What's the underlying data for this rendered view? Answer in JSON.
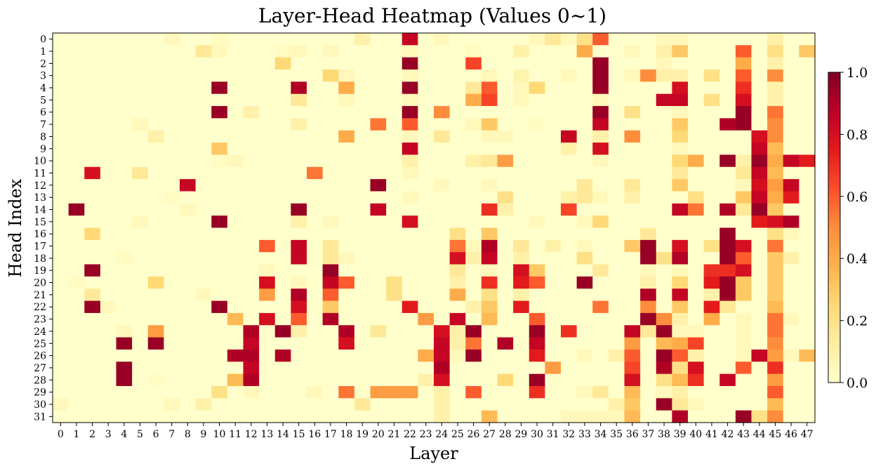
{
  "chart_data": {
    "type": "heatmap",
    "title": "Layer-Head Heatmap (Values 0~1)",
    "xlabel": "Layer",
    "ylabel": "Head Index",
    "x_categories": [
      "0",
      "1",
      "2",
      "3",
      "4",
      "5",
      "6",
      "7",
      "8",
      "9",
      "10",
      "11",
      "12",
      "13",
      "14",
      "15",
      "16",
      "17",
      "18",
      "19",
      "20",
      "21",
      "22",
      "23",
      "24",
      "25",
      "26",
      "27",
      "28",
      "29",
      "30",
      "31",
      "32",
      "33",
      "34",
      "35",
      "36",
      "37",
      "38",
      "39",
      "40",
      "41",
      "42",
      "43",
      "44",
      "45",
      "46",
      "47"
    ],
    "y_categories": [
      "0",
      "1",
      "2",
      "3",
      "4",
      "5",
      "6",
      "7",
      "8",
      "9",
      "10",
      "11",
      "12",
      "13",
      "14",
      "15",
      "16",
      "17",
      "18",
      "19",
      "20",
      "21",
      "22",
      "23",
      "24",
      "25",
      "26",
      "27",
      "28",
      "29",
      "30",
      "31"
    ],
    "colormap": "YlOrRd",
    "colorbar": {
      "range": [
        0,
        1
      ],
      "ticks": [
        "0.0",
        "0.2",
        "0.4",
        "0.6",
        "0.8",
        "1.0"
      ]
    },
    "value_range": [
      0,
      1
    ],
    "grid": false,
    "values": [
      [
        0,
        0,
        0,
        0,
        0,
        0,
        0,
        0.05,
        0,
        0,
        0.03,
        0,
        0,
        0,
        0,
        0,
        0,
        0,
        0,
        0.1,
        0,
        0,
        0.85,
        0,
        0.05,
        0,
        0,
        0,
        0,
        0,
        0.05,
        0.15,
        0.05,
        0.2,
        0.6,
        0,
        0,
        0,
        0.05,
        0.05,
        0,
        0,
        0,
        0,
        0,
        0.1,
        0,
        0
      ],
      [
        0,
        0,
        0,
        0,
        0,
        0,
        0,
        0,
        0,
        0.15,
        0.05,
        0,
        0,
        0,
        0.03,
        0.05,
        0,
        0.05,
        0,
        0,
        0,
        0,
        0.05,
        0,
        0,
        0,
        0.03,
        0,
        0,
        0.1,
        0,
        0,
        0,
        0.4,
        0,
        0,
        0.05,
        0,
        0.1,
        0.3,
        0,
        0,
        0,
        0.6,
        0,
        0.2,
        0,
        0.3
      ],
      [
        0,
        0,
        0,
        0,
        0,
        0,
        0,
        0,
        0,
        0,
        0,
        0,
        0,
        0,
        0.25,
        0,
        0,
        0,
        0,
        0,
        0,
        0,
        0.95,
        0,
        0,
        0,
        0.65,
        0,
        0,
        0,
        0,
        0,
        0,
        0,
        0.95,
        0,
        0,
        0,
        0.05,
        0,
        0,
        0,
        0,
        0.4,
        0,
        0.1,
        0,
        0
      ],
      [
        0,
        0,
        0,
        0,
        0,
        0,
        0,
        0,
        0,
        0,
        0,
        0,
        0,
        0,
        0,
        0,
        0,
        0.25,
        0.05,
        0,
        0,
        0,
        0.05,
        0,
        0,
        0,
        0,
        0.05,
        0,
        0.08,
        0,
        0,
        0.05,
        0,
        0.95,
        0,
        0.05,
        0.5,
        0.1,
        0.1,
        0,
        0.2,
        0,
        0.6,
        0,
        0.5,
        0,
        0
      ],
      [
        0,
        0,
        0,
        0,
        0,
        0,
        0,
        0,
        0,
        0,
        0.95,
        0,
        0,
        0,
        0,
        0.9,
        0,
        0,
        0.4,
        0,
        0,
        0,
        0.95,
        0,
        0,
        0,
        0.15,
        0.6,
        0,
        0.05,
        0.25,
        0,
        0,
        0,
        0.95,
        0,
        0,
        0,
        0,
        0.8,
        0,
        0,
        0,
        0.7,
        0,
        0.1,
        0,
        0
      ],
      [
        0,
        0,
        0,
        0,
        0,
        0,
        0,
        0,
        0,
        0,
        0,
        0,
        0,
        0,
        0,
        0.15,
        0,
        0,
        0.05,
        0,
        0,
        0,
        0.05,
        0,
        0,
        0,
        0.4,
        0.65,
        0,
        0.05,
        0,
        0,
        0,
        0,
        0.05,
        0,
        0,
        0,
        0.85,
        0.85,
        0,
        0.2,
        0,
        0.8,
        0,
        0.1,
        0,
        0
      ],
      [
        0,
        0,
        0,
        0,
        0,
        0,
        0,
        0,
        0,
        0,
        0.95,
        0,
        0.1,
        0,
        0,
        0,
        0,
        0,
        0,
        0,
        0,
        0,
        0.95,
        0,
        0.5,
        0,
        0,
        0,
        0,
        0,
        0,
        0,
        0,
        0,
        0.95,
        0,
        0.2,
        0,
        0,
        0.05,
        0,
        0,
        0,
        0.95,
        0,
        0.55,
        0,
        0
      ],
      [
        0,
        0,
        0,
        0,
        0,
        0.05,
        0,
        0,
        0,
        0,
        0,
        0,
        0,
        0,
        0,
        0.1,
        0,
        0,
        0,
        0,
        0.55,
        0,
        0.6,
        0,
        0,
        0,
        0.05,
        0.3,
        0,
        0,
        0.03,
        0,
        0,
        0,
        0.85,
        0,
        0,
        0,
        0,
        0.3,
        0,
        0,
        0.9,
        0.95,
        0,
        0.5,
        0,
        0
      ],
      [
        0,
        0,
        0,
        0,
        0,
        0,
        0.1,
        0,
        0,
        0,
        0,
        0,
        0,
        0,
        0,
        0,
        0,
        0,
        0.4,
        0,
        0,
        0,
        0.05,
        0,
        0.15,
        0,
        0,
        0.05,
        0.05,
        0,
        0,
        0,
        0.85,
        0,
        0.1,
        0,
        0.5,
        0,
        0,
        0.25,
        0,
        0,
        0,
        0,
        0.8,
        0.5,
        0,
        0
      ],
      [
        0,
        0,
        0,
        0,
        0,
        0,
        0,
        0,
        0,
        0,
        0.3,
        0,
        0,
        0,
        0,
        0,
        0,
        0,
        0,
        0,
        0,
        0,
        0.85,
        0,
        0,
        0,
        0,
        0,
        0,
        0,
        0,
        0,
        0.1,
        0,
        0.8,
        0,
        0,
        0,
        0,
        0.05,
        0,
        0,
        0,
        0,
        0.85,
        0.35,
        0,
        0
      ],
      [
        0,
        0,
        0,
        0,
        0,
        0,
        0,
        0,
        0,
        0,
        0.03,
        0.05,
        0,
        0,
        0,
        0,
        0,
        0,
        0,
        0,
        0,
        0,
        0.1,
        0,
        0,
        0,
        0.1,
        0.15,
        0.45,
        0,
        0,
        0,
        0,
        0,
        0.05,
        0,
        0,
        0,
        0,
        0.25,
        0.4,
        0,
        0.95,
        0.1,
        0.95,
        0.4,
        0.85,
        0.75
      ],
      [
        0,
        0,
        0.8,
        0,
        0,
        0.15,
        0,
        0,
        0,
        0,
        0,
        0,
        0,
        0,
        0,
        0,
        0.55,
        0,
        0,
        0,
        0,
        0,
        0.05,
        0,
        0,
        0,
        0,
        0,
        0,
        0,
        0,
        0,
        0,
        0,
        0,
        0,
        0,
        0,
        0,
        0.15,
        0,
        0,
        0,
        0.15,
        0.85,
        0.35,
        0,
        0
      ],
      [
        0,
        0,
        0,
        0,
        0,
        0,
        0,
        0,
        0.85,
        0,
        0,
        0,
        0,
        0,
        0,
        0,
        0,
        0,
        0,
        0,
        0.95,
        0,
        0,
        0,
        0.05,
        0,
        0,
        0.05,
        0,
        0,
        0,
        0,
        0,
        0.15,
        0,
        0,
        0.15,
        0,
        0,
        0.3,
        0,
        0,
        0,
        0.05,
        0.8,
        0.45,
        0.85,
        0
      ],
      [
        0,
        0,
        0,
        0,
        0,
        0,
        0,
        0.03,
        0,
        0,
        0,
        0,
        0,
        0,
        0,
        0,
        0,
        0,
        0,
        0,
        0,
        0,
        0.05,
        0,
        0,
        0,
        0,
        0,
        0.2,
        0,
        0,
        0,
        0.1,
        0.15,
        0.05,
        0,
        0.1,
        0,
        0,
        0,
        0.2,
        0,
        0,
        0.3,
        0.85,
        0.4,
        0.75,
        0
      ],
      [
        0,
        0.95,
        0,
        0,
        0,
        0,
        0,
        0,
        0.05,
        0,
        0,
        0,
        0,
        0,
        0,
        0.95,
        0,
        0,
        0,
        0,
        0.85,
        0,
        0,
        0,
        0,
        0,
        0,
        0.7,
        0.1,
        0,
        0,
        0,
        0.65,
        0,
        0,
        0,
        0,
        0,
        0,
        0.85,
        0.55,
        0,
        0.9,
        0.15,
        0.95,
        0.3,
        0,
        0
      ],
      [
        0,
        0,
        0,
        0,
        0,
        0.05,
        0,
        0,
        0,
        0,
        0.95,
        0,
        0,
        0,
        0,
        0.1,
        0,
        0.05,
        0,
        0,
        0,
        0,
        0.8,
        0,
        0,
        0,
        0,
        0,
        0,
        0,
        0.05,
        0,
        0,
        0.05,
        0.25,
        0,
        0,
        0,
        0,
        0,
        0,
        0,
        0,
        0,
        0.75,
        0.8,
        0.9,
        0
      ],
      [
        0,
        0,
        0.25,
        0,
        0,
        0,
        0,
        0,
        0,
        0,
        0,
        0,
        0,
        0,
        0,
        0,
        0,
        0,
        0,
        0,
        0,
        0,
        0,
        0,
        0,
        0.2,
        0,
        0.3,
        0,
        0,
        0,
        0,
        0,
        0,
        0,
        0,
        0,
        0.15,
        0,
        0,
        0,
        0,
        0.95,
        0,
        0,
        0.2,
        0.05,
        0
      ],
      [
        0,
        0,
        0,
        0,
        0,
        0,
        0,
        0,
        0,
        0,
        0,
        0,
        0,
        0.6,
        0,
        0.85,
        0,
        0.15,
        0,
        0,
        0,
        0,
        0,
        0,
        0,
        0.55,
        0.05,
        0.9,
        0,
        0.15,
        0,
        0.1,
        0,
        0.05,
        0,
        0,
        0.3,
        0.95,
        0,
        0.8,
        0,
        0.2,
        0.95,
        0.8,
        0,
        0.55,
        0,
        0
      ],
      [
        0,
        0,
        0,
        0,
        0.03,
        0,
        0,
        0,
        0,
        0,
        0,
        0,
        0,
        0,
        0,
        0.85,
        0,
        0.15,
        0.05,
        0,
        0,
        0,
        0,
        0,
        0,
        0.8,
        0.1,
        0.85,
        0,
        0.1,
        0,
        0,
        0,
        0.2,
        0,
        0,
        0,
        0.95,
        0.2,
        0.9,
        0,
        0,
        0.95,
        0.6,
        0,
        0.3,
        0.1,
        0
      ],
      [
        0,
        0,
        0.95,
        0,
        0,
        0,
        0,
        0,
        0,
        0,
        0,
        0,
        0,
        0.05,
        0,
        0,
        0,
        0.95,
        0,
        0,
        0,
        0,
        0,
        0,
        0,
        0.15,
        0,
        0.05,
        0,
        0.8,
        0.3,
        0,
        0,
        0,
        0.15,
        0,
        0,
        0.05,
        0,
        0.05,
        0,
        0.7,
        0.7,
        0.8,
        0,
        0.3,
        0,
        0
      ],
      [
        0,
        0.03,
        0,
        0,
        0,
        0,
        0.25,
        0,
        0,
        0,
        0,
        0,
        0,
        0.8,
        0,
        0.05,
        0,
        0.85,
        0.6,
        0,
        0,
        0.2,
        0,
        0,
        0,
        0.1,
        0,
        0.7,
        0,
        0.75,
        0.6,
        0,
        0,
        0.95,
        0,
        0,
        0,
        0.1,
        0,
        0.25,
        0,
        0.75,
        0.95,
        0.3,
        0,
        0.3,
        0,
        0
      ],
      [
        0,
        0,
        0.15,
        0,
        0,
        0,
        0,
        0,
        0,
        0.05,
        0,
        0,
        0,
        0.45,
        0,
        0.9,
        0,
        0.6,
        0,
        0,
        0,
        0.2,
        0,
        0,
        0,
        0.4,
        0,
        0.2,
        0,
        0.1,
        0,
        0,
        0,
        0,
        0,
        0,
        0,
        0.9,
        0,
        0.85,
        0,
        0.1,
        0.95,
        0.3,
        0,
        0.3,
        0,
        0
      ],
      [
        0,
        0,
        0.95,
        0.05,
        0,
        0,
        0,
        0,
        0,
        0,
        0.95,
        0,
        0,
        0,
        0,
        0.8,
        0,
        0.3,
        0,
        0,
        0,
        0,
        0.75,
        0,
        0,
        0,
        0.1,
        0.3,
        0,
        0.75,
        0,
        0,
        0,
        0,
        0.55,
        0,
        0,
        0.5,
        0,
        0.3,
        0,
        0.75,
        0.15,
        0,
        0,
        0.35,
        0,
        0
      ],
      [
        0,
        0,
        0,
        0,
        0,
        0,
        0,
        0,
        0,
        0,
        0,
        0.35,
        0,
        0.8,
        0,
        0.6,
        0,
        0.9,
        0,
        0,
        0,
        0,
        0,
        0.45,
        0,
        0.85,
        0,
        0.35,
        0,
        0,
        0.6,
        0,
        0,
        0,
        0,
        0,
        0,
        0.95,
        0.5,
        0.1,
        0,
        0.4,
        0,
        0.05,
        0,
        0.55,
        0.05,
        0
      ],
      [
        0,
        0,
        0,
        0,
        0.05,
        0,
        0.45,
        0,
        0,
        0,
        0,
        0,
        0.9,
        0,
        0.95,
        0.1,
        0,
        0,
        0.9,
        0,
        0.15,
        0,
        0,
        0,
        0.8,
        0.1,
        0.95,
        0,
        0,
        0,
        0.95,
        0,
        0.7,
        0,
        0,
        0,
        0.85,
        0.15,
        0.95,
        0.05,
        0.05,
        0,
        0,
        0.05,
        0,
        0.55,
        0,
        0
      ],
      [
        0,
        0,
        0,
        0,
        0.95,
        0,
        0.95,
        0,
        0,
        0,
        0,
        0,
        0.85,
        0,
        0,
        0,
        0,
        0,
        0.8,
        0,
        0,
        0,
        0,
        0,
        0.85,
        0.1,
        0.55,
        0,
        0.9,
        0,
        0.85,
        0,
        0,
        0,
        0,
        0,
        0.45,
        0,
        0.35,
        0.4,
        0.65,
        0,
        0,
        0.05,
        0,
        0.5,
        0,
        0
      ],
      [
        0,
        0,
        0,
        0,
        0,
        0,
        0,
        0,
        0,
        0,
        0,
        0.9,
        0.9,
        0,
        0.9,
        0,
        0,
        0,
        0,
        0,
        0,
        0,
        0,
        0.4,
        0.85,
        0.05,
        0.95,
        0,
        0,
        0,
        0.75,
        0,
        0,
        0.05,
        0,
        0.1,
        0.6,
        0,
        0.95,
        0.6,
        0.1,
        0,
        0,
        0.05,
        0.85,
        0.45,
        0.05,
        0.35
      ],
      [
        0,
        0,
        0,
        0,
        0.95,
        0,
        0,
        0,
        0,
        0,
        0,
        0,
        0.85,
        0,
        0,
        0,
        0,
        0,
        0,
        0,
        0,
        0,
        0,
        0,
        0.9,
        0,
        0,
        0,
        0,
        0,
        0,
        0.45,
        0,
        0,
        0,
        0,
        0.65,
        0,
        0.9,
        0.2,
        0.8,
        0,
        0,
        0.6,
        0,
        0.7,
        0,
        0
      ],
      [
        0,
        0,
        0,
        0,
        0.95,
        0,
        0.03,
        0,
        0,
        0,
        0,
        0.35,
        0.9,
        0,
        0,
        0,
        0,
        0,
        0,
        0,
        0,
        0,
        0,
        0.1,
        0.8,
        0,
        0,
        0,
        0.25,
        0,
        0.95,
        0,
        0,
        0,
        0,
        0,
        0.8,
        0,
        0.2,
        0.35,
        0.7,
        0,
        0.85,
        0,
        0,
        0.45,
        0,
        0
      ],
      [
        0,
        0,
        0,
        0,
        0,
        0,
        0,
        0,
        0,
        0,
        0.2,
        0,
        0.05,
        0,
        0,
        0,
        0.05,
        0,
        0.55,
        0,
        0.45,
        0.45,
        0.45,
        0,
        0.1,
        0,
        0.6,
        0,
        0,
        0,
        0.7,
        0,
        0,
        0.05,
        0.15,
        0,
        0.35,
        0,
        0.05,
        0.1,
        0,
        0,
        0,
        0,
        0,
        0.6,
        0,
        0
      ],
      [
        0.05,
        0,
        0,
        0,
        0,
        0,
        0,
        0.05,
        0,
        0.1,
        0,
        0,
        0,
        0,
        0,
        0,
        0,
        0,
        0,
        0.15,
        0,
        0,
        0,
        0,
        0.1,
        0,
        0,
        0,
        0,
        0,
        0,
        0,
        0,
        0,
        0,
        0.1,
        0.3,
        0,
        0.95,
        0.15,
        0.05,
        0,
        0,
        0,
        0,
        0.35,
        0,
        0
      ],
      [
        0,
        0,
        0,
        0,
        0,
        0,
        0,
        0,
        0,
        0,
        0,
        0,
        0,
        0,
        0,
        0,
        0,
        0,
        0,
        0,
        0,
        0,
        0,
        0,
        0.1,
        0,
        0,
        0.35,
        0,
        0,
        0,
        0,
        0.05,
        0.05,
        0.05,
        0.05,
        0.35,
        0,
        0,
        0.9,
        0,
        0,
        0,
        0.95,
        0.2,
        0.5,
        0,
        0
      ]
    ]
  }
}
